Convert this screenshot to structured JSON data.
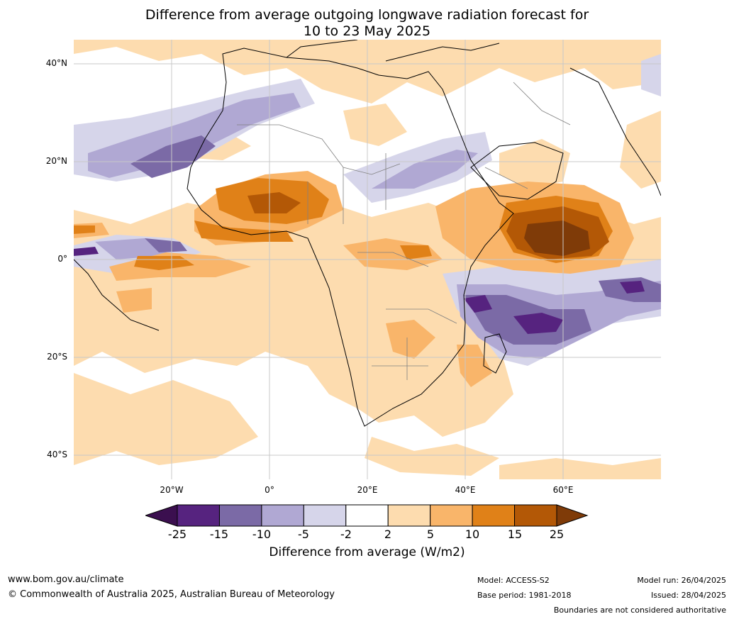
{
  "title_line1": "Difference from average outgoing longwave radiation forecast for",
  "title_line2": "10 to 23 May 2025",
  "lat_labels": [
    "40°N",
    "20°N",
    "0°",
    "20°S",
    "40°S"
  ],
  "lon_labels": [
    "20°W",
    "0°",
    "20°E",
    "40°E",
    "60°E"
  ],
  "colorbar": {
    "ticks": [
      "-25",
      "-15",
      "-10",
      "-5",
      "-2",
      "2",
      "5",
      "10",
      "15",
      "25"
    ],
    "colors": [
      "#3b0f4f",
      "#56237f",
      "#7b6aa6",
      "#b0a8d3",
      "#d6d5ea",
      "#ffffff",
      "#fddcaf",
      "#f9b56a",
      "#e08118",
      "#b35806",
      "#7f3b08"
    ],
    "title": "Difference from average (W/m2)"
  },
  "footer": {
    "website": "www.bom.gov.au/climate",
    "copyright": "© Commonwealth of Australia 2025, Australian Bureau of Meteorology",
    "model": "Model: ACCESS-S2",
    "base_period": "Base period: 1981-2018",
    "model_run": "Model run: 26/04/2025",
    "issued": "Issued: 28/04/2025",
    "disclaimer": "Boundaries are not considered authoritative"
  }
}
